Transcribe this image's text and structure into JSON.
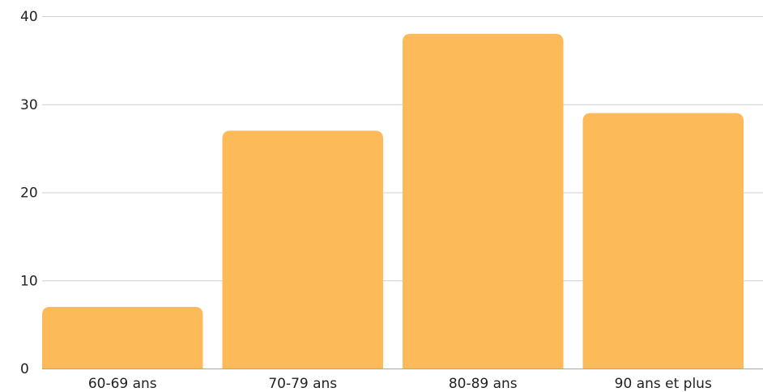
{
  "chart_data": {
    "type": "bar",
    "title": "",
    "xlabel": "",
    "ylabel": "",
    "categories": [
      "60-69 ans",
      "70-79 ans",
      "80-89 ans",
      "90 ans et plus"
    ],
    "values": [
      7,
      27,
      38,
      29
    ],
    "ylim": [
      0,
      40
    ],
    "yticks": [
      "0",
      "10",
      "20",
      "30",
      "40"
    ],
    "grid": true,
    "legend": "none",
    "bar_color": "#FDBA58"
  }
}
